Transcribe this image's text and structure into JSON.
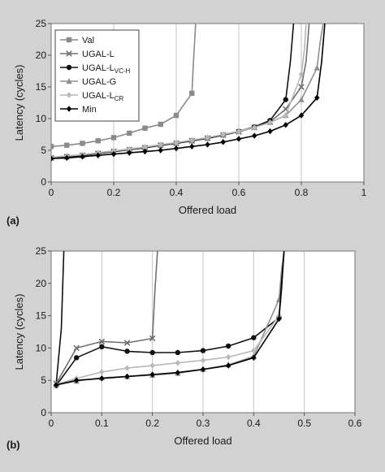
{
  "panels": [
    {
      "label": "(a)"
    },
    {
      "label": "(b)"
    }
  ],
  "chart_data": [
    {
      "type": "line",
      "xlabel": "Offered load",
      "ylabel": "Latency (cycles)",
      "xlim": [
        0,
        1
      ],
      "ylim": [
        0,
        25
      ],
      "xticks": [
        0,
        0.2,
        0.4,
        0.6,
        0.8,
        1
      ],
      "xtick_labels": [
        "0",
        "0.2",
        "0.4",
        "0.6",
        "0.8",
        "1"
      ],
      "yticks": [
        0,
        5,
        10,
        15,
        20,
        25
      ],
      "ytick_labels": [
        "0",
        "5",
        "10",
        "15",
        "20",
        "25"
      ],
      "grid": "vertical",
      "legend_position": "top-left",
      "series": [
        {
          "name": "Val",
          "color": "#8a8a8a",
          "marker": "square",
          "x": [
            0,
            0.05,
            0.1,
            0.15,
            0.2,
            0.25,
            0.3,
            0.35,
            0.4,
            0.45
          ],
          "y": [
            5.6,
            5.8,
            6.1,
            6.5,
            7.0,
            7.7,
            8.5,
            9.1,
            10.5,
            14.0
          ],
          "tail": [
            [
              0.455,
              19
            ],
            [
              0.462,
              25
            ]
          ]
        },
        {
          "name": "UGAL-L",
          "color": "#707070",
          "marker": "x",
          "x": [
            0,
            0.05,
            0.1,
            0.15,
            0.2,
            0.25,
            0.3,
            0.35,
            0.4,
            0.45,
            0.5,
            0.55,
            0.6,
            0.65,
            0.7,
            0.75,
            0.8
          ],
          "y": [
            3.8,
            4.0,
            4.2,
            4.5,
            4.8,
            5.1,
            5.4,
            5.8,
            6.1,
            6.5,
            6.9,
            7.4,
            7.9,
            8.6,
            9.5,
            11.5,
            15.0
          ],
          "tail": [
            [
              0.815,
              19
            ],
            [
              0.825,
              25
            ]
          ]
        },
        {
          "name": "UGAL-L_VC-H",
          "color": "#111111",
          "marker": "circle",
          "x": [
            0,
            0.05,
            0.1,
            0.15,
            0.2,
            0.25,
            0.3,
            0.35,
            0.4,
            0.45,
            0.5,
            0.55,
            0.6,
            0.65,
            0.7,
            0.75
          ],
          "y": [
            3.8,
            4.0,
            4.2,
            4.5,
            4.8,
            5.1,
            5.4,
            5.8,
            6.1,
            6.5,
            6.9,
            7.4,
            8.0,
            8.7,
            9.7,
            13.0
          ],
          "tail": [
            [
              0.765,
              19
            ],
            [
              0.775,
              25
            ]
          ]
        },
        {
          "name": "UGAL-G",
          "color": "#909090",
          "marker": "triangle",
          "x": [
            0,
            0.05,
            0.1,
            0.15,
            0.2,
            0.25,
            0.3,
            0.35,
            0.4,
            0.45,
            0.5,
            0.55,
            0.6,
            0.65,
            0.7,
            0.75,
            0.8,
            0.85
          ],
          "y": [
            3.9,
            4.1,
            4.3,
            4.6,
            4.9,
            5.2,
            5.5,
            5.9,
            6.2,
            6.6,
            7.0,
            7.5,
            8.0,
            8.6,
            9.4,
            10.5,
            13.0,
            18.0
          ],
          "tail": [
            [
              0.86,
              22
            ],
            [
              0.87,
              25
            ]
          ]
        },
        {
          "name": "UGAL-L_CR",
          "color": "#b8b8b8",
          "marker": "diamond",
          "x": [
            0,
            0.05,
            0.1,
            0.15,
            0.2,
            0.25,
            0.3,
            0.35,
            0.4,
            0.45,
            0.5,
            0.55,
            0.6,
            0.65,
            0.7,
            0.75,
            0.8
          ],
          "y": [
            3.9,
            4.1,
            4.3,
            4.6,
            4.9,
            5.2,
            5.5,
            5.9,
            6.2,
            6.6,
            7.0,
            7.5,
            8.0,
            8.6,
            9.4,
            10.5,
            17.0
          ],
          "tail": [
            [
              0.81,
              21
            ],
            [
              0.815,
              25
            ]
          ]
        },
        {
          "name": "Min",
          "color": "#000000",
          "marker": "diamond",
          "x": [
            0,
            0.05,
            0.1,
            0.15,
            0.2,
            0.25,
            0.3,
            0.35,
            0.4,
            0.45,
            0.5,
            0.55,
            0.6,
            0.65,
            0.7,
            0.75,
            0.8,
            0.85
          ],
          "y": [
            3.7,
            3.8,
            4.0,
            4.2,
            4.4,
            4.6,
            4.8,
            5.0,
            5.3,
            5.6,
            5.9,
            6.3,
            6.8,
            7.3,
            8.0,
            9.0,
            10.5,
            13.3
          ],
          "tail": [
            [
              0.865,
              19
            ],
            [
              0.875,
              25
            ]
          ]
        }
      ]
    },
    {
      "type": "line",
      "xlabel": "Offered load",
      "ylabel": "Latency (cycles)",
      "xlim": [
        0,
        0.6
      ],
      "ylim": [
        0,
        25
      ],
      "xticks": [
        0,
        0.1,
        0.2,
        0.3,
        0.4,
        0.5,
        0.6
      ],
      "xtick_labels": [
        "0",
        "0.1",
        "0.2",
        "0.3",
        "0.4",
        "0.5",
        "0.6"
      ],
      "yticks": [
        0,
        5,
        10,
        15,
        20,
        25
      ],
      "ytick_labels": [
        "0",
        "5",
        "10",
        "15",
        "20",
        "25"
      ],
      "grid": "vertical",
      "series": [
        {
          "name": "Val",
          "color": "#111111",
          "marker": "none",
          "x": [
            0.01,
            0.02,
            0.025
          ],
          "y": [
            4.5,
            13.0,
            25.0
          ],
          "tail": []
        },
        {
          "name": "UGAL-L",
          "color": "#707070",
          "marker": "x",
          "x": [
            0.01,
            0.05,
            0.1,
            0.15,
            0.2
          ],
          "y": [
            4.5,
            10.0,
            11.0,
            10.8,
            11.5
          ],
          "tail": [
            [
              0.205,
              19
            ],
            [
              0.21,
              25
            ]
          ]
        },
        {
          "name": "UGAL-L_VC-H",
          "color": "#111111",
          "marker": "circle",
          "x": [
            0.01,
            0.05,
            0.1,
            0.15,
            0.2,
            0.25,
            0.3,
            0.35,
            0.4,
            0.45
          ],
          "y": [
            4.2,
            8.5,
            10.2,
            9.5,
            9.3,
            9.3,
            9.6,
            10.3,
            11.6,
            14.7
          ],
          "tail": [
            [
              0.455,
              19
            ],
            [
              0.46,
              25
            ]
          ]
        },
        {
          "name": "UGAL-G",
          "color": "#909090",
          "marker": "triangle",
          "x": [
            0.01,
            0.05,
            0.1,
            0.15,
            0.2,
            0.25,
            0.3,
            0.35,
            0.4,
            0.45
          ],
          "y": [
            4.3,
            4.9,
            5.4,
            5.6,
            5.8,
            6.1,
            6.7,
            7.4,
            8.7,
            17.5
          ],
          "tail": [
            [
              0.455,
              22
            ],
            [
              0.46,
              25
            ]
          ]
        },
        {
          "name": "UGAL-L_CR",
          "color": "#b8b8b8",
          "marker": "diamond",
          "x": [
            0.01,
            0.05,
            0.1,
            0.15,
            0.2,
            0.25,
            0.3,
            0.35,
            0.4,
            0.45
          ],
          "y": [
            4.4,
            5.3,
            6.3,
            6.9,
            7.3,
            7.7,
            8.1,
            8.6,
            9.6,
            15.0
          ],
          "tail": [
            [
              0.455,
              20
            ],
            [
              0.46,
              25
            ]
          ]
        },
        {
          "name": "Min",
          "color": "#000000",
          "marker": "diamond",
          "x": [
            0.01,
            0.05,
            0.1,
            0.15,
            0.2,
            0.25,
            0.3,
            0.35,
            0.4,
            0.45
          ],
          "y": [
            4.3,
            5.0,
            5.3,
            5.6,
            5.9,
            6.2,
            6.7,
            7.3,
            8.5,
            14.5
          ],
          "tail": [
            [
              0.455,
              20
            ],
            [
              0.46,
              25
            ]
          ]
        }
      ]
    }
  ]
}
